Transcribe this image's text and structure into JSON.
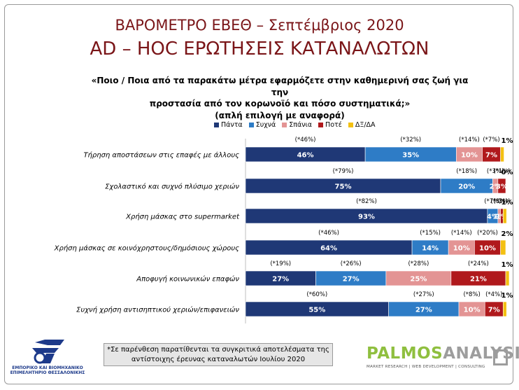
{
  "header": {
    "title": "ΒΑΡΟΜΕΤΡΟ ΕΒΕΘ – Σεπτέμβριος 2020",
    "subtitle": "AD – HOC ΕΡΩΤΗΣΕΙΣ ΚΑΤΑΝΑΛΩΤΩΝ"
  },
  "question": [
    "«Ποιο / Ποια από τα παρακάτω μέτρα  εφαρμόζετε στην καθημερινή  σας ζωή για την",
    "προστασία  από τον κορωνοϊό και πόσο συστηματικά;»",
    "(απλή επιλογή  με αναφορά)"
  ],
  "footnote": [
    "*Σε παρένθεση παρατίθενται τα συγκριτικά αποτελέσματα της",
    "αντίστοιχης έρευνας καταναλωτών Ιουλίου 2020"
  ],
  "logos": {
    "left": [
      "ΕΜΠΟΡΙΚΟ ΚΑΙ ΒΙΟΜΗΧΑΝΙΚΟ",
      "ΕΠΙΜΕΛΗΤΗΡΙΟ ΘΕΣΣΑΛΟΝΙΚΗΣ"
    ],
    "right": {
      "part1": "PALMOS",
      "part2": "ANALYSIS",
      "tagline": "MARKET RESEARCH | WEB DEVELOPMENT | CONSULTING"
    }
  },
  "chart_data": {
    "type": "bar",
    "orientation": "horizontal",
    "stacked": true,
    "xlim": [
      0,
      100
    ],
    "grid": false,
    "legend_position": "top",
    "categories": [
      "Τήρηση αποστάσεων στις επαφές με άλλους",
      "Σχολαστικό και συχνό πλύσιμο χεριών",
      "Χρήση μάσκας  στο supermarket",
      "Χρήση μάσκας  σε κοινόχρηστους/δημόσιους χώρους",
      "Αποφυγή κοινωνικών επαφών",
      "Συχνή χρήση αντισηπτικού χεριών/επιφανειών"
    ],
    "series": [
      {
        "name": "Πάντα",
        "color": "#1f3876",
        "label_color": "#ffffff",
        "values": [
          46,
          75,
          93,
          64,
          27,
          55
        ],
        "labels": [
          "46%",
          "75%",
          "93%",
          "64%",
          "27%",
          "55%"
        ],
        "previous": [
          "(*46%)",
          "(*79%)",
          "(*82%)",
          "(*46%)",
          "(*19%)",
          "(*60%)"
        ]
      },
      {
        "name": "Συχνά",
        "color": "#2e7cc6",
        "label_color": "#ffffff",
        "values": [
          35,
          20,
          4,
          14,
          27,
          27
        ],
        "labels": [
          "35%",
          "20%",
          "4%",
          "14%",
          "27%",
          "27%"
        ],
        "previous": [
          "(*32%)",
          "(*18%)",
          "(*7%)",
          "(*15%)",
          "(*26%)",
          "(*27%)"
        ]
      },
      {
        "name": "Σπάνια",
        "color": "#e39494",
        "label_color": "#ffffff",
        "values": [
          10,
          2,
          1,
          10,
          25,
          10
        ],
        "labels": [
          "10%",
          "2%",
          "1%",
          "10%",
          "25%",
          "10%"
        ],
        "previous": [
          "(*14%)",
          "(*3%)",
          "(*3%)",
          "(*14%)",
          "(*28%)",
          "(*8%)"
        ]
      },
      {
        "name": "Ποτέ",
        "color": "#b0191c",
        "label_color": "#ffffff",
        "values": [
          7,
          3,
          1,
          10,
          21,
          7
        ],
        "labels": [
          "7%",
          "3%",
          "1%",
          "10%",
          "21%",
          "7%"
        ],
        "previous": [
          "(*7%)",
          "(*1%)",
          "(*3%)",
          "(*20%)",
          "(*24%)",
          "(*4%)"
        ]
      },
      {
        "name": "ΔΞ/ΔΑ",
        "color": "#f3c012",
        "label_color": "#000000",
        "values": [
          1,
          0,
          1,
          2,
          1,
          1
        ],
        "labels": [
          "1%",
          "0%",
          "1%",
          "2%",
          "1%",
          "1%"
        ]
      }
    ]
  }
}
